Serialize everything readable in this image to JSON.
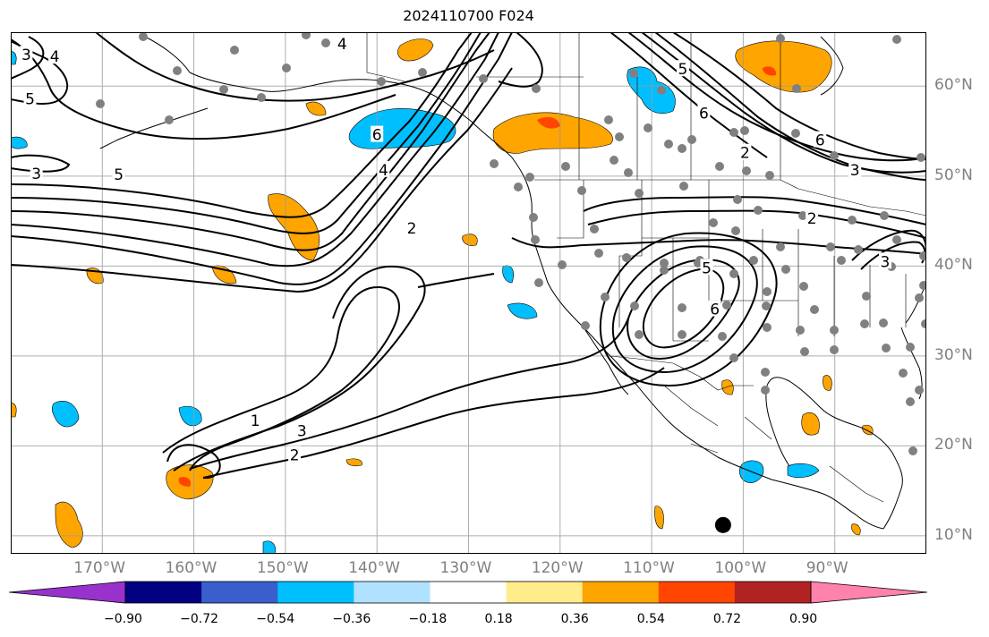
{
  "title": "2024110700 F024",
  "map": {
    "projection": "PlateCarree",
    "extent_lon": [
      -180,
      -80
    ],
    "extent_lat": [
      8,
      66
    ],
    "gridlines": true,
    "lon_ticks": [
      {
        "value": -170,
        "label": "170°W"
      },
      {
        "value": -160,
        "label": "160°W"
      },
      {
        "value": -150,
        "label": "150°W"
      },
      {
        "value": -140,
        "label": "140°W"
      },
      {
        "value": -130,
        "label": "130°W"
      },
      {
        "value": -120,
        "label": "120°W"
      },
      {
        "value": -110,
        "label": "110°W"
      },
      {
        "value": -100,
        "label": "100°W"
      },
      {
        "value": -90,
        "label": "90°W"
      }
    ],
    "lat_ticks": [
      {
        "value": 60,
        "label": "60°N"
      },
      {
        "value": 50,
        "label": "50°N"
      },
      {
        "value": 40,
        "label": "40°N"
      },
      {
        "value": 30,
        "label": "30°N"
      },
      {
        "value": 20,
        "label": "20°N"
      },
      {
        "value": 10,
        "label": "10°N"
      }
    ],
    "contour_labels": [
      {
        "text": "4",
        "lon": -143.8,
        "lat": 64.7
      },
      {
        "text": "4",
        "lon": -175.2,
        "lat": 63.3
      },
      {
        "text": "3",
        "lon": -178.3,
        "lat": 63.5
      },
      {
        "text": "5",
        "lon": -177.9,
        "lat": 58.6
      },
      {
        "text": "5",
        "lon": -168.2,
        "lat": 50.2
      },
      {
        "text": "3",
        "lon": -177.2,
        "lat": 50.3
      },
      {
        "text": "6",
        "lon": -140.0,
        "lat": 54.6
      },
      {
        "text": "4",
        "lon": -139.3,
        "lat": 50.7
      },
      {
        "text": "2",
        "lon": -136.2,
        "lat": 44.2
      },
      {
        "text": "5",
        "lon": -106.6,
        "lat": 61.9
      },
      {
        "text": "6",
        "lon": -104.3,
        "lat": 57.0
      },
      {
        "text": "2",
        "lon": -99.8,
        "lat": 52.6
      },
      {
        "text": "6",
        "lon": -91.6,
        "lat": 54.0
      },
      {
        "text": "3",
        "lon": -87.8,
        "lat": 50.7
      },
      {
        "text": "2",
        "lon": -92.5,
        "lat": 45.3
      },
      {
        "text": "3",
        "lon": -84.5,
        "lat": 40.5
      },
      {
        "text": "5",
        "lon": -104.0,
        "lat": 39.8
      },
      {
        "text": "6",
        "lon": -103.1,
        "lat": 35.2
      },
      {
        "text": "1",
        "lon": -153.3,
        "lat": 22.8
      },
      {
        "text": "3",
        "lon": -148.2,
        "lat": 21.7
      },
      {
        "text": "2",
        "lon": -149.0,
        "lat": 19.0
      }
    ],
    "station_dots_color": "#808080",
    "marker": {
      "lon": -102.2,
      "lat": 11.2,
      "color": "#000000"
    },
    "contour_color": "#000000",
    "coast_color": "#000000"
  },
  "colorbar": {
    "colors": [
      "#9932CC",
      "#000080",
      "#3A5FCD",
      "#00BFFF",
      "#B0E2FF",
      "#FFFFFF",
      "#FFEC8B",
      "#FFA500",
      "#FF4500",
      "#B22222",
      "#FF82AB"
    ],
    "tick_labels": [
      "−0.90",
      "−0.72",
      "−0.54",
      "−0.36",
      "−0.18",
      "0.18",
      "0.36",
      "0.54",
      "0.72",
      "0.90"
    ],
    "extend": "both"
  }
}
